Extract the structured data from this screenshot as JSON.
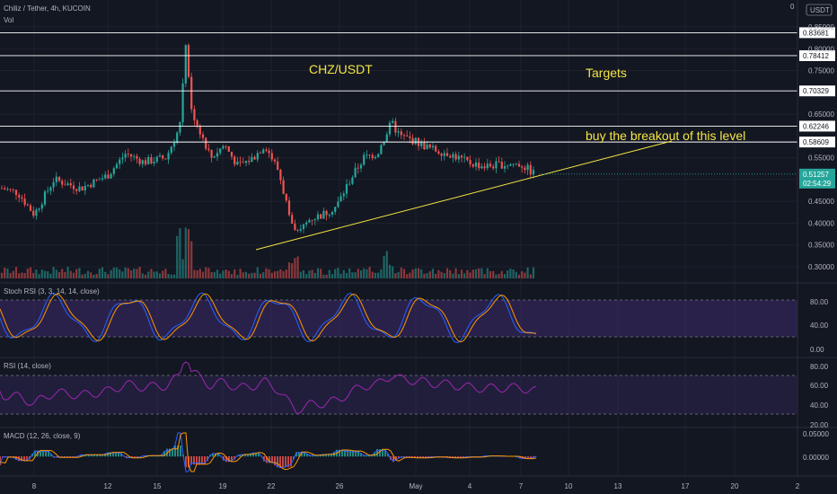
{
  "header": {
    "symbol": "Chiliz / Tether, 4h, KUCOIN",
    "vol_label": "Vol",
    "top_right_value": "0",
    "currency": "USDT"
  },
  "colors": {
    "background": "#131722",
    "grid": "#1e222d",
    "up": "#26a69a",
    "down": "#ef5350",
    "annotation": "#f5e543",
    "level_line": "#ffffff",
    "stoch_k": "#2962ff",
    "stoch_d": "#ff9800",
    "rsi": "#9c27b0",
    "band_fill": "#3c2a6b",
    "price_badge": "#26a69a"
  },
  "annotations": {
    "title": "CHZ/USDT",
    "targets": "Targets",
    "breakout_note": "buy the breakout of this level"
  },
  "chart_data": {
    "type": "candlestick",
    "price_axis": {
      "ticks": [
        "0.85000",
        "0.80000",
        "0.75000",
        "0.65000",
        "0.55000",
        "0.50000",
        "0.45000",
        "0.40000",
        "0.35000",
        "0.30000"
      ],
      "levels": [
        "0.83681",
        "0.78412",
        "0.70329",
        "0.62246",
        "0.58609"
      ],
      "last_price": "0.51257",
      "countdown": "02:54:29"
    },
    "x_axis": {
      "ticks": [
        "8",
        "12",
        "15",
        "19",
        "22",
        "26",
        "May",
        "4",
        "7",
        "10",
        "13",
        "17",
        "20",
        "2"
      ]
    },
    "indicators": [
      {
        "name": "Stoch RSI (3, 3, 14, 14, close)",
        "ticks": [
          "80.00",
          "40.00",
          "0.00"
        ],
        "band": [
          20,
          80
        ]
      },
      {
        "name": "RSI (14, close)",
        "ticks": [
          "80.00",
          "60.00",
          "40.00",
          "20.00"
        ],
        "band": [
          30,
          70
        ]
      },
      {
        "name": "MACD (12, 26, close, 9)",
        "ticks": [
          "0.05000",
          "0.00000"
        ]
      }
    ]
  }
}
